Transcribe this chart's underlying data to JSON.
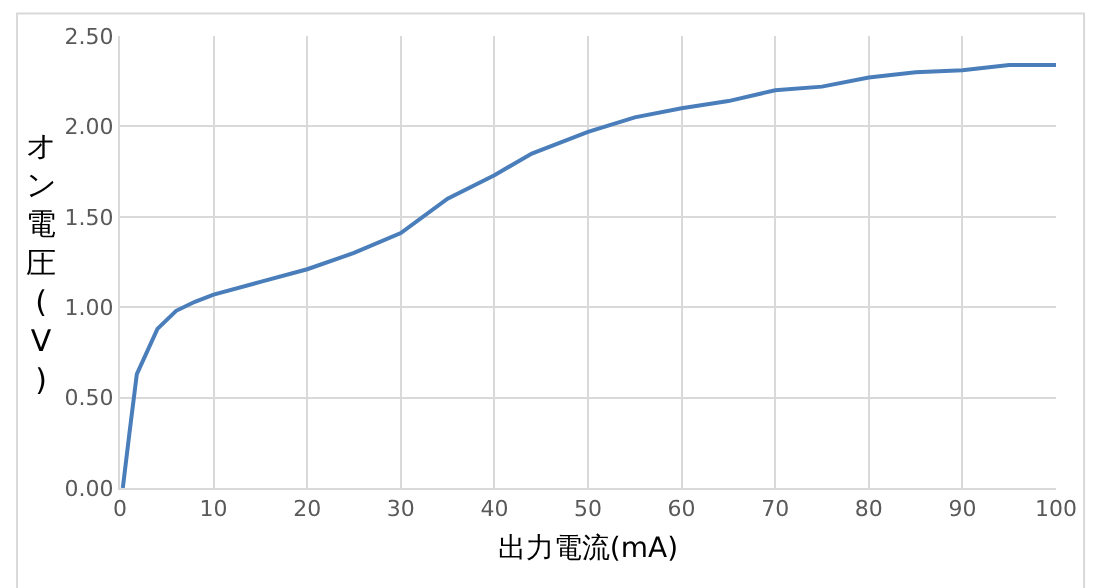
{
  "chart_data": {
    "type": "line",
    "xlabel": "出力電流(mA)",
    "ylabel": "オン電圧(V)",
    "x": [
      0.3,
      1,
      1.8,
      4,
      6,
      8,
      10,
      15,
      20,
      25,
      30,
      35,
      40,
      44,
      50,
      55,
      60,
      65,
      70,
      75,
      80,
      85,
      90,
      95,
      100
    ],
    "series": [
      {
        "color": "#4a7ebb",
        "values": [
          0,
          0.3,
          0.63,
          0.88,
          0.98,
          1.03,
          1.07,
          1.14,
          1.21,
          1.3,
          1.41,
          1.6,
          1.73,
          1.85,
          1.97,
          2.05,
          2.1,
          2.14,
          2.2,
          2.22,
          2.27,
          2.3,
          2.31,
          2.34,
          2.34
        ]
      }
    ],
    "xlim": [
      0,
      100
    ],
    "xticks": [
      0,
      10,
      20,
      30,
      40,
      50,
      60,
      70,
      80,
      90,
      100
    ],
    "ylim": [
      0,
      2.5
    ],
    "yticks": [
      {
        "value": 0,
        "label": "0.00"
      },
      {
        "value": 0.5,
        "label": "0.50"
      },
      {
        "value": 1,
        "label": "1.00"
      },
      {
        "value": 1.5,
        "label": "1.50"
      },
      {
        "value": 2,
        "label": "2.00"
      },
      {
        "value": 2.5,
        "label": "2.50"
      }
    ],
    "grid": true,
    "marker": "none",
    "line_style": "solid"
  }
}
